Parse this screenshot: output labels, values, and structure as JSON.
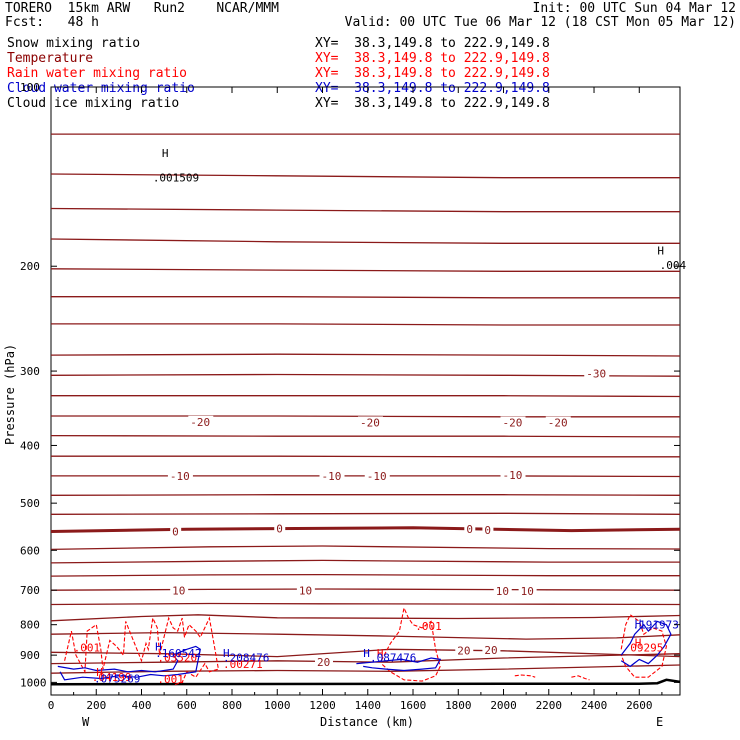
{
  "header": {
    "title": "TORERO  15km ARW   Run2    NCAR/MMM",
    "init": "Init: 00 UTC Sun 04 Mar 12",
    "fcst": "Fcst:   48 h",
    "valid": "Valid: 00 UTC Tue 06 Mar 12 (18 CST Mon 05 Mar 12)"
  },
  "legend": [
    {
      "label": "Snow mixing ratio",
      "xy": "XY=  38.3,149.8 to 222.9,149.8",
      "color": "#000000",
      "xycolor": "#000000"
    },
    {
      "label": "Temperature",
      "xy": "XY=  38.3,149.8 to 222.9,149.8",
      "color": "#8b0000",
      "xycolor": "#ff0000"
    },
    {
      "label": "Rain water mixing ratio",
      "xy": "XY=  38.3,149.8 to 222.9,149.8",
      "color": "#ff0000",
      "xycolor": "#ff0000"
    },
    {
      "label": "Cloud water mixing ratio",
      "xy": "XY=  38.3,149.8 to 222.9,149.8",
      "color": "#0000cd",
      "xycolor": "#0000cd"
    },
    {
      "label": "Cloud ice mixing ratio",
      "xy": "XY=  38.3,149.8 to 222.9,149.8",
      "color": "#000000",
      "xycolor": "#000000"
    }
  ],
  "chart_data": {
    "type": "line",
    "xlabel": "Distance (km)",
    "ylabel": "Pressure (hPa)",
    "xlim": [
      0,
      2780
    ],
    "ylim": [
      1050,
      100
    ],
    "x_ticks": [
      0,
      200,
      400,
      600,
      800,
      1000,
      1200,
      1400,
      1600,
      1800,
      2000,
      2200,
      2400,
      2600
    ],
    "y_ticks": [
      100,
      200,
      300,
      400,
      500,
      600,
      700,
      800,
      900,
      1000
    ],
    "x_end_labels": {
      "left": "W",
      "right": "E"
    },
    "temperature_isotherms": [
      {
        "pressure": [
          120,
          120,
          120,
          120
        ],
        "x": [
          0,
          1000,
          2000,
          2780
        ]
      },
      {
        "pressure": [
          140,
          141,
          142,
          142
        ],
        "x": [
          0,
          1000,
          2000,
          2780
        ]
      },
      {
        "pressure": [
          160,
          161,
          162,
          162
        ],
        "x": [
          0,
          1000,
          2000,
          2780
        ]
      },
      {
        "pressure": [
          180,
          182,
          183,
          183
        ],
        "x": [
          0,
          1000,
          2000,
          2780
        ]
      },
      {
        "pressure": [
          202,
          203,
          204,
          204
        ],
        "x": [
          0,
          1000,
          2000,
          2780
        ]
      },
      {
        "pressure": [
          225,
          225,
          226,
          226
        ],
        "x": [
          0,
          1000,
          2000,
          2780
        ]
      },
      {
        "pressure": [
          250,
          250,
          251,
          251
        ],
        "x": [
          0,
          1000,
          2000,
          2780
        ]
      },
      {
        "pressure": [
          282,
          281,
          282,
          283
        ],
        "x": [
          0,
          1000,
          2000,
          2780
        ]
      },
      {
        "pressure": [
          305,
          304,
          305,
          306
        ],
        "x": [
          0,
          1000,
          2000,
          2780
        ]
      },
      {
        "pressure": [
          330,
          330,
          330,
          331
        ],
        "x": [
          0,
          1000,
          2000,
          2780
        ]
      },
      {
        "pressure": [
          357,
          357,
          358,
          358
        ],
        "x": [
          0,
          1000,
          2000,
          2780
        ]
      },
      {
        "pressure": [
          385,
          386,
          386,
          387
        ],
        "x": [
          0,
          1000,
          2000,
          2780
        ]
      },
      {
        "pressure": [
          417,
          417,
          418,
          418
        ],
        "x": [
          0,
          1000,
          2000,
          2780
        ]
      },
      {
        "pressure": [
          450,
          450,
          450,
          451
        ],
        "x": [
          0,
          1000,
          2000,
          2780
        ]
      },
      {
        "pressure": [
          485,
          484,
          484,
          485
        ],
        "x": [
          0,
          1000,
          2000,
          2780
        ]
      },
      {
        "pressure": [
          522,
          521,
          520,
          522
        ],
        "x": [
          0,
          1000,
          2000,
          2780
        ]
      },
      {
        "pressure": [
          558,
          553,
          550,
          556,
          553
        ],
        "x": [
          0,
          600,
          1600,
          2300,
          2780
        ]
      },
      {
        "pressure": [
          598,
          592,
          590,
          596,
          597
        ],
        "x": [
          0,
          700,
          1200,
          2200,
          2780
        ]
      },
      {
        "pressure": [
          630,
          626,
          624,
          628,
          628
        ],
        "x": [
          0,
          700,
          1200,
          2200,
          2780
        ]
      },
      {
        "pressure": [
          663,
          660,
          659,
          662,
          662
        ],
        "x": [
          0,
          700,
          1200,
          2200,
          2780
        ]
      },
      {
        "pressure": [
          700,
          698,
          697,
          699,
          700
        ],
        "x": [
          0,
          700,
          1200,
          2200,
          2780
        ]
      },
      {
        "pressure": [
          740,
          737,
          738,
          739,
          740
        ],
        "x": [
          0,
          700,
          1200,
          2200,
          2780
        ]
      },
      {
        "pressure": [
          788,
          775,
          770,
          779,
          781,
          778,
          772
        ],
        "x": [
          0,
          400,
          650,
          1000,
          1800,
          2400,
          2780
        ]
      },
      {
        "pressure": [
          830,
          825,
          830,
          836,
          846,
          842,
          832
        ],
        "x": [
          0,
          500,
          1000,
          1500,
          2100,
          2500,
          2780
        ]
      },
      {
        "pressure": [
          890,
          895,
          905,
          880,
          885,
          905
        ],
        "x": [
          0,
          500,
          1000,
          1500,
          2000,
          2780
        ]
      },
      {
        "pressure": [
          930,
          925,
          920,
          925,
          910,
          895
        ],
        "x": [
          0,
          500,
          1000,
          1500,
          2000,
          2780
        ]
      },
      {
        "pressure": [
          965,
          958,
          955,
          958,
          950,
          935
        ],
        "x": [
          0,
          500,
          1000,
          1500,
          2000,
          2780
        ]
      }
    ],
    "zero_isotherm_index": 16,
    "temperature_labels": [
      {
        "text": "-30",
        "x": 2370,
        "p": 303
      },
      {
        "text": "-20",
        "x": 620,
        "p": 365
      },
      {
        "text": "-20",
        "x": 1370,
        "p": 366
      },
      {
        "text": "-20",
        "x": 2000,
        "p": 366
      },
      {
        "text": "-20",
        "x": 2200,
        "p": 366
      },
      {
        "text": "-10",
        "x": 530,
        "p": 450
      },
      {
        "text": "-10",
        "x": 1200,
        "p": 450
      },
      {
        "text": "-10",
        "x": 1400,
        "p": 450
      },
      {
        "text": "-10",
        "x": 2000,
        "p": 448
      },
      {
        "text": "0",
        "x": 540,
        "p": 558
      },
      {
        "text": "0",
        "x": 1000,
        "p": 552
      },
      {
        "text": "0",
        "x": 1840,
        "p": 553
      },
      {
        "text": "0",
        "x": 1920,
        "p": 555
      },
      {
        "text": "10",
        "x": 540,
        "p": 701
      },
      {
        "text": "10",
        "x": 1100,
        "p": 701
      },
      {
        "text": "10",
        "x": 1970,
        "p": 702
      },
      {
        "text": "10",
        "x": 2080,
        "p": 702
      },
      {
        "text": "20",
        "x": 1180,
        "p": 924
      },
      {
        "text": "20",
        "x": 1800,
        "p": 884
      },
      {
        "text": "20",
        "x": 1920,
        "p": 883
      }
    ],
    "rain_labels": [
      {
        "text": ".001",
        "x": 100,
        "p": 888
      },
      {
        "text": ".001",
        "x": 1610,
        "p": 817
      },
      {
        "text": ".001",
        "x": 470,
        "p": 1003
      },
      {
        "text": ".00271",
        "x": 760,
        "p": 945
      },
      {
        "text": ".03520",
        "x": 470,
        "p": 922
      },
      {
        "text": ".04199",
        "x": 180,
        "p": 994
      }
    ],
    "rain_highs": [
      {
        "text": "H",
        "x": 200,
        "p": 976
      },
      {
        "text": "H",
        "x": 1440,
        "p": 907
      },
      {
        "text": "H",
        "x": 2580,
        "p": 870
      }
    ],
    "rain_value_labels": [
      {
        "text": "09295",
        "x": 2560,
        "p": 887
      }
    ],
    "cloud_labels": [
      {
        "text": ".160542",
        "x": 460,
        "p": 907
      },
      {
        "text": ".208476",
        "x": 760,
        "p": 922
      },
      {
        "text": ".087476",
        "x": 1410,
        "p": 922
      },
      {
        "text": ".075269",
        "x": 190,
        "p": 1000
      },
      {
        "text": ".191973",
        "x": 2570,
        "p": 812
      }
    ],
    "cloud_highs": [
      {
        "text": "H",
        "x": 460,
        "p": 884
      },
      {
        "text": "H",
        "x": 760,
        "p": 907
      },
      {
        "text": "H",
        "x": 1380,
        "p": 907
      },
      {
        "text": "H",
        "x": 2580,
        "p": 808
      }
    ],
    "snow_labels": [
      {
        "text": ".001509",
        "x": 450,
        "p": 144
      },
      {
        "text": ".004",
        "x": 2690,
        "p": 202
      }
    ],
    "snow_highs": [
      {
        "text": "H",
        "x": 490,
        "p": 131
      },
      {
        "text": "H",
        "x": 2680,
        "p": 191
      }
    ],
    "rain_contours": [
      {
        "x": [
          60,
          90,
          110,
          150,
          160,
          200,
          220,
          230,
          260,
          290,
          320,
          330,
          400,
          420,
          430,
          450,
          470,
          480,
          520,
          540,
          560,
          580,
          590,
          610,
          640,
          660,
          700,
          720,
          740,
          700,
          680,
          640,
          600,
          580,
          540
        ],
        "p": [
          920,
          820,
          900,
          960,
          820,
          800,
          880,
          950,
          850,
          870,
          900,
          790,
          920,
          860,
          880,
          780,
          810,
          900,
          780,
          810,
          820,
          780,
          840,
          800,
          820,
          840,
          780,
          860,
          950,
          960,
          930,
          980,
          960,
          1000,
          1010
        ]
      },
      {
        "x": [
          1460,
          1500,
          1540,
          1560,
          1580,
          1600,
          1640,
          1680,
          1700,
          1720,
          1700,
          1640,
          1560,
          1500,
          1460
        ],
        "p": [
          920,
          860,
          820,
          750,
          780,
          800,
          810,
          790,
          880,
          940,
          975,
          995,
          990,
          960,
          930
        ]
      },
      {
        "x": [
          2520,
          2540,
          2560,
          2600,
          2620,
          2660,
          2700,
          2720,
          2700,
          2640,
          2580,
          2540,
          2520
        ],
        "p": [
          880,
          800,
          770,
          790,
          830,
          810,
          820,
          870,
          940,
          980,
          980,
          940,
          900
        ]
      },
      {
        "x": [
          2050,
          2080,
          2120,
          2140
        ],
        "p": [
          975,
          972,
          975,
          980
        ]
      },
      {
        "x": [
          2300,
          2330,
          2360,
          2380
        ],
        "p": [
          980,
          975,
          985,
          990
        ]
      }
    ],
    "cloud_contours": [
      {
        "x": [
          30,
          100,
          150,
          200,
          280,
          340,
          400,
          460,
          540,
          560,
          540,
          600,
          640,
          660,
          640,
          560,
          500,
          440,
          380,
          300,
          220,
          140,
          60,
          40
        ],
        "p": [
          940,
          950,
          945,
          955,
          950,
          960,
          955,
          960,
          950,
          920,
          900,
          880,
          870,
          880,
          960,
          970,
          975,
          970,
          980,
          975,
          985,
          980,
          990,
          960
        ]
      },
      {
        "x": [
          1350,
          1420,
          1480,
          1550,
          1620,
          1680,
          1720,
          1700,
          1640,
          1560,
          1480,
          1420,
          1380
        ],
        "p": [
          930,
          925,
          920,
          915,
          925,
          910,
          915,
          945,
          950,
          955,
          950,
          945,
          940
        ]
      },
      {
        "x": [
          2520,
          2560,
          2580,
          2620,
          2640,
          2680,
          2720,
          2740,
          2710,
          2680,
          2640,
          2600,
          2560,
          2520
        ],
        "p": [
          900,
          860,
          830,
          800,
          820,
          790,
          800,
          830,
          870,
          900,
          930,
          915,
          940,
          920
        ]
      }
    ],
    "terrain": {
      "x": [
        0,
        2600,
        2680,
        2720,
        2780
      ],
      "p": [
        1007,
        1005,
        1003,
        990,
        998
      ]
    }
  }
}
